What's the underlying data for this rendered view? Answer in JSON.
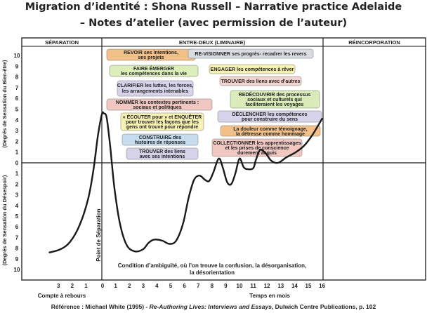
{
  "title": {
    "line1": "Migration d’identité : Shona Russell – Narrative practice Adelaide",
    "line2": "– Notes d’atelier (avec permission de l’auteur)"
  },
  "phases": [
    {
      "id": "separation",
      "label": "SÉPARATION"
    },
    {
      "id": "liminal",
      "label": "ENTRE-DEUX (LIMINAIRE)"
    },
    {
      "id": "reincorporation",
      "label": "RÉINCORPORATION"
    }
  ],
  "y_axis": {
    "upper_label": "(Degrés de Sensation du Bien-être)",
    "lower_label": "(Degrés de Sensation du Désespoir)",
    "upper_ticks": [
      "10",
      "9",
      "8",
      "7",
      "6",
      "5",
      "4",
      "3",
      "2",
      "1"
    ],
    "zero_tick": "0",
    "lower_ticks": [
      "1",
      "2",
      "3",
      "4",
      "5",
      "6",
      "7",
      "8",
      "9",
      "10"
    ]
  },
  "x_axis": {
    "before_ticks": [
      "3",
      "2",
      "1"
    ],
    "zero_tick": "0",
    "after_ticks": [
      "1",
      "2",
      "3",
      "4",
      "5",
      "6",
      "7",
      "8",
      "9",
      "10",
      "11",
      "12",
      "13",
      "14",
      "15",
      "16"
    ],
    "before_label": "Compte à rebours",
    "after_label": "Temps en mois"
  },
  "separation_point": "Point de Séparation",
  "ambiguity_note": {
    "line1": "Condition d’ambiguïté,  où l’on trouve la confusion, la désorganisation,",
    "line2": "la désorientation"
  },
  "boxes": [
    {
      "lines": [
        "REVOIR ses intentions,",
        "ses projets"
      ],
      "color": "#f3c089"
    },
    {
      "lines": [
        "RE-VISIONNER ses progrès- recadrer les revers"
      ],
      "color": "#d9dde2"
    },
    {
      "lines": [
        "FAIRE ÉMERGER",
        "les compétences dans la vie"
      ],
      "color": "#dceeb9"
    },
    {
      "lines": [
        "ENGAGER les compétences à rêver"
      ],
      "color": "#f7f2b3"
    },
    {
      "lines": [
        "CLARIFIER les luttes, les forces,",
        "les arrangements intenables"
      ],
      "color": "#d6d3ea"
    },
    {
      "lines": [
        "TROUVER des liens avec d’autres"
      ],
      "color": "#f3d3d0"
    },
    {
      "lines": [
        "REDÉCOUVRIR des processus",
        "sociaux et culturels qui",
        "faciliteraient les voyages"
      ],
      "color": "#d9ecb9"
    },
    {
      "lines": [
        "NOMMER les contextes pertinents :",
        "sociaux et politiques"
      ],
      "color": "#f0c7c1"
    },
    {
      "lines": [
        "DÉCLENCHER les compétences",
        "pour construire du sens"
      ],
      "color": "#d6d3ea"
    },
    {
      "lines": [
        "« ÉCOUTER pour » et ENQUÊTER",
        "pour trouver les façons que les",
        "gens ont trouvé pour répondre"
      ],
      "color": "#f7f2b3"
    },
    {
      "lines": [
        "La douleur comme témoignage,",
        "la détresse comme hommage"
      ],
      "color": "#f3c089"
    },
    {
      "lines": [
        "CONSTRUIRE des",
        "histoires de réponses"
      ],
      "color": "#c7dcef"
    },
    {
      "lines": [
        "COLLECTIONNER les apprentissages",
        "et les prises de conscience",
        "durement acquis"
      ],
      "color": "#f0c7c1"
    },
    {
      "lines": [
        "TROUVER des liens",
        "avec ses intentions"
      ],
      "color": "#d6d3ea"
    }
  ],
  "reference": {
    "prefix": "Référence : Michael White (1995) - ",
    "book": "Re-Authoring Lives: Interviews and Essays",
    "suffix": ", Dulwich Centre Publications, p. 102"
  },
  "curve": {
    "x_unit": "months relative to separation point",
    "y_unit": "well-being (+) / despair (-)",
    "points": [
      [
        -3.8,
        -8.4
      ],
      [
        -3,
        -8.1
      ],
      [
        -2.3,
        -7.4
      ],
      [
        -1.6,
        -5.8
      ],
      [
        -1,
        -3.4
      ],
      [
        -0.6,
        -0.6
      ],
      [
        -0.3,
        2.4
      ],
      [
        0,
        4.5
      ],
      [
        0.15,
        4.6
      ],
      [
        0.35,
        4.2
      ],
      [
        0.6,
        1.6
      ],
      [
        0.9,
        -2.2
      ],
      [
        1.3,
        -5.6
      ],
      [
        1.8,
        -7.7
      ],
      [
        2.4,
        -8.3
      ],
      [
        3,
        -8.1
      ],
      [
        3.4,
        -7.5
      ],
      [
        3.8,
        -7.2
      ],
      [
        4.4,
        -7.3
      ],
      [
        4.9,
        -7.6
      ],
      [
        5.4,
        -7.3
      ],
      [
        5.9,
        -5.7
      ],
      [
        6.3,
        -3.3
      ],
      [
        6.7,
        -1.6
      ],
      [
        7.1,
        -1.2
      ],
      [
        7.5,
        -1.6
      ],
      [
        7.8,
        -1.7
      ],
      [
        8.1,
        -0.9
      ],
      [
        8.5,
        0.4
      ],
      [
        8.8,
        -0.5
      ],
      [
        9.1,
        -1.8
      ],
      [
        9.4,
        -2
      ],
      [
        9.7,
        -1
      ],
      [
        10,
        0.4
      ],
      [
        10.3,
        -0.4
      ],
      [
        10.6,
        -0.6
      ],
      [
        11,
        -0.5
      ],
      [
        11.2,
        0.3
      ],
      [
        11.5,
        1.2
      ],
      [
        11.9,
        0.9
      ],
      [
        12.3,
        0.2
      ],
      [
        12.8,
        0
      ],
      [
        13.4,
        0.5
      ],
      [
        14.1,
        1
      ],
      [
        14.7,
        1.6
      ],
      [
        15.3,
        2.6
      ],
      [
        16,
        4.1
      ]
    ]
  }
}
